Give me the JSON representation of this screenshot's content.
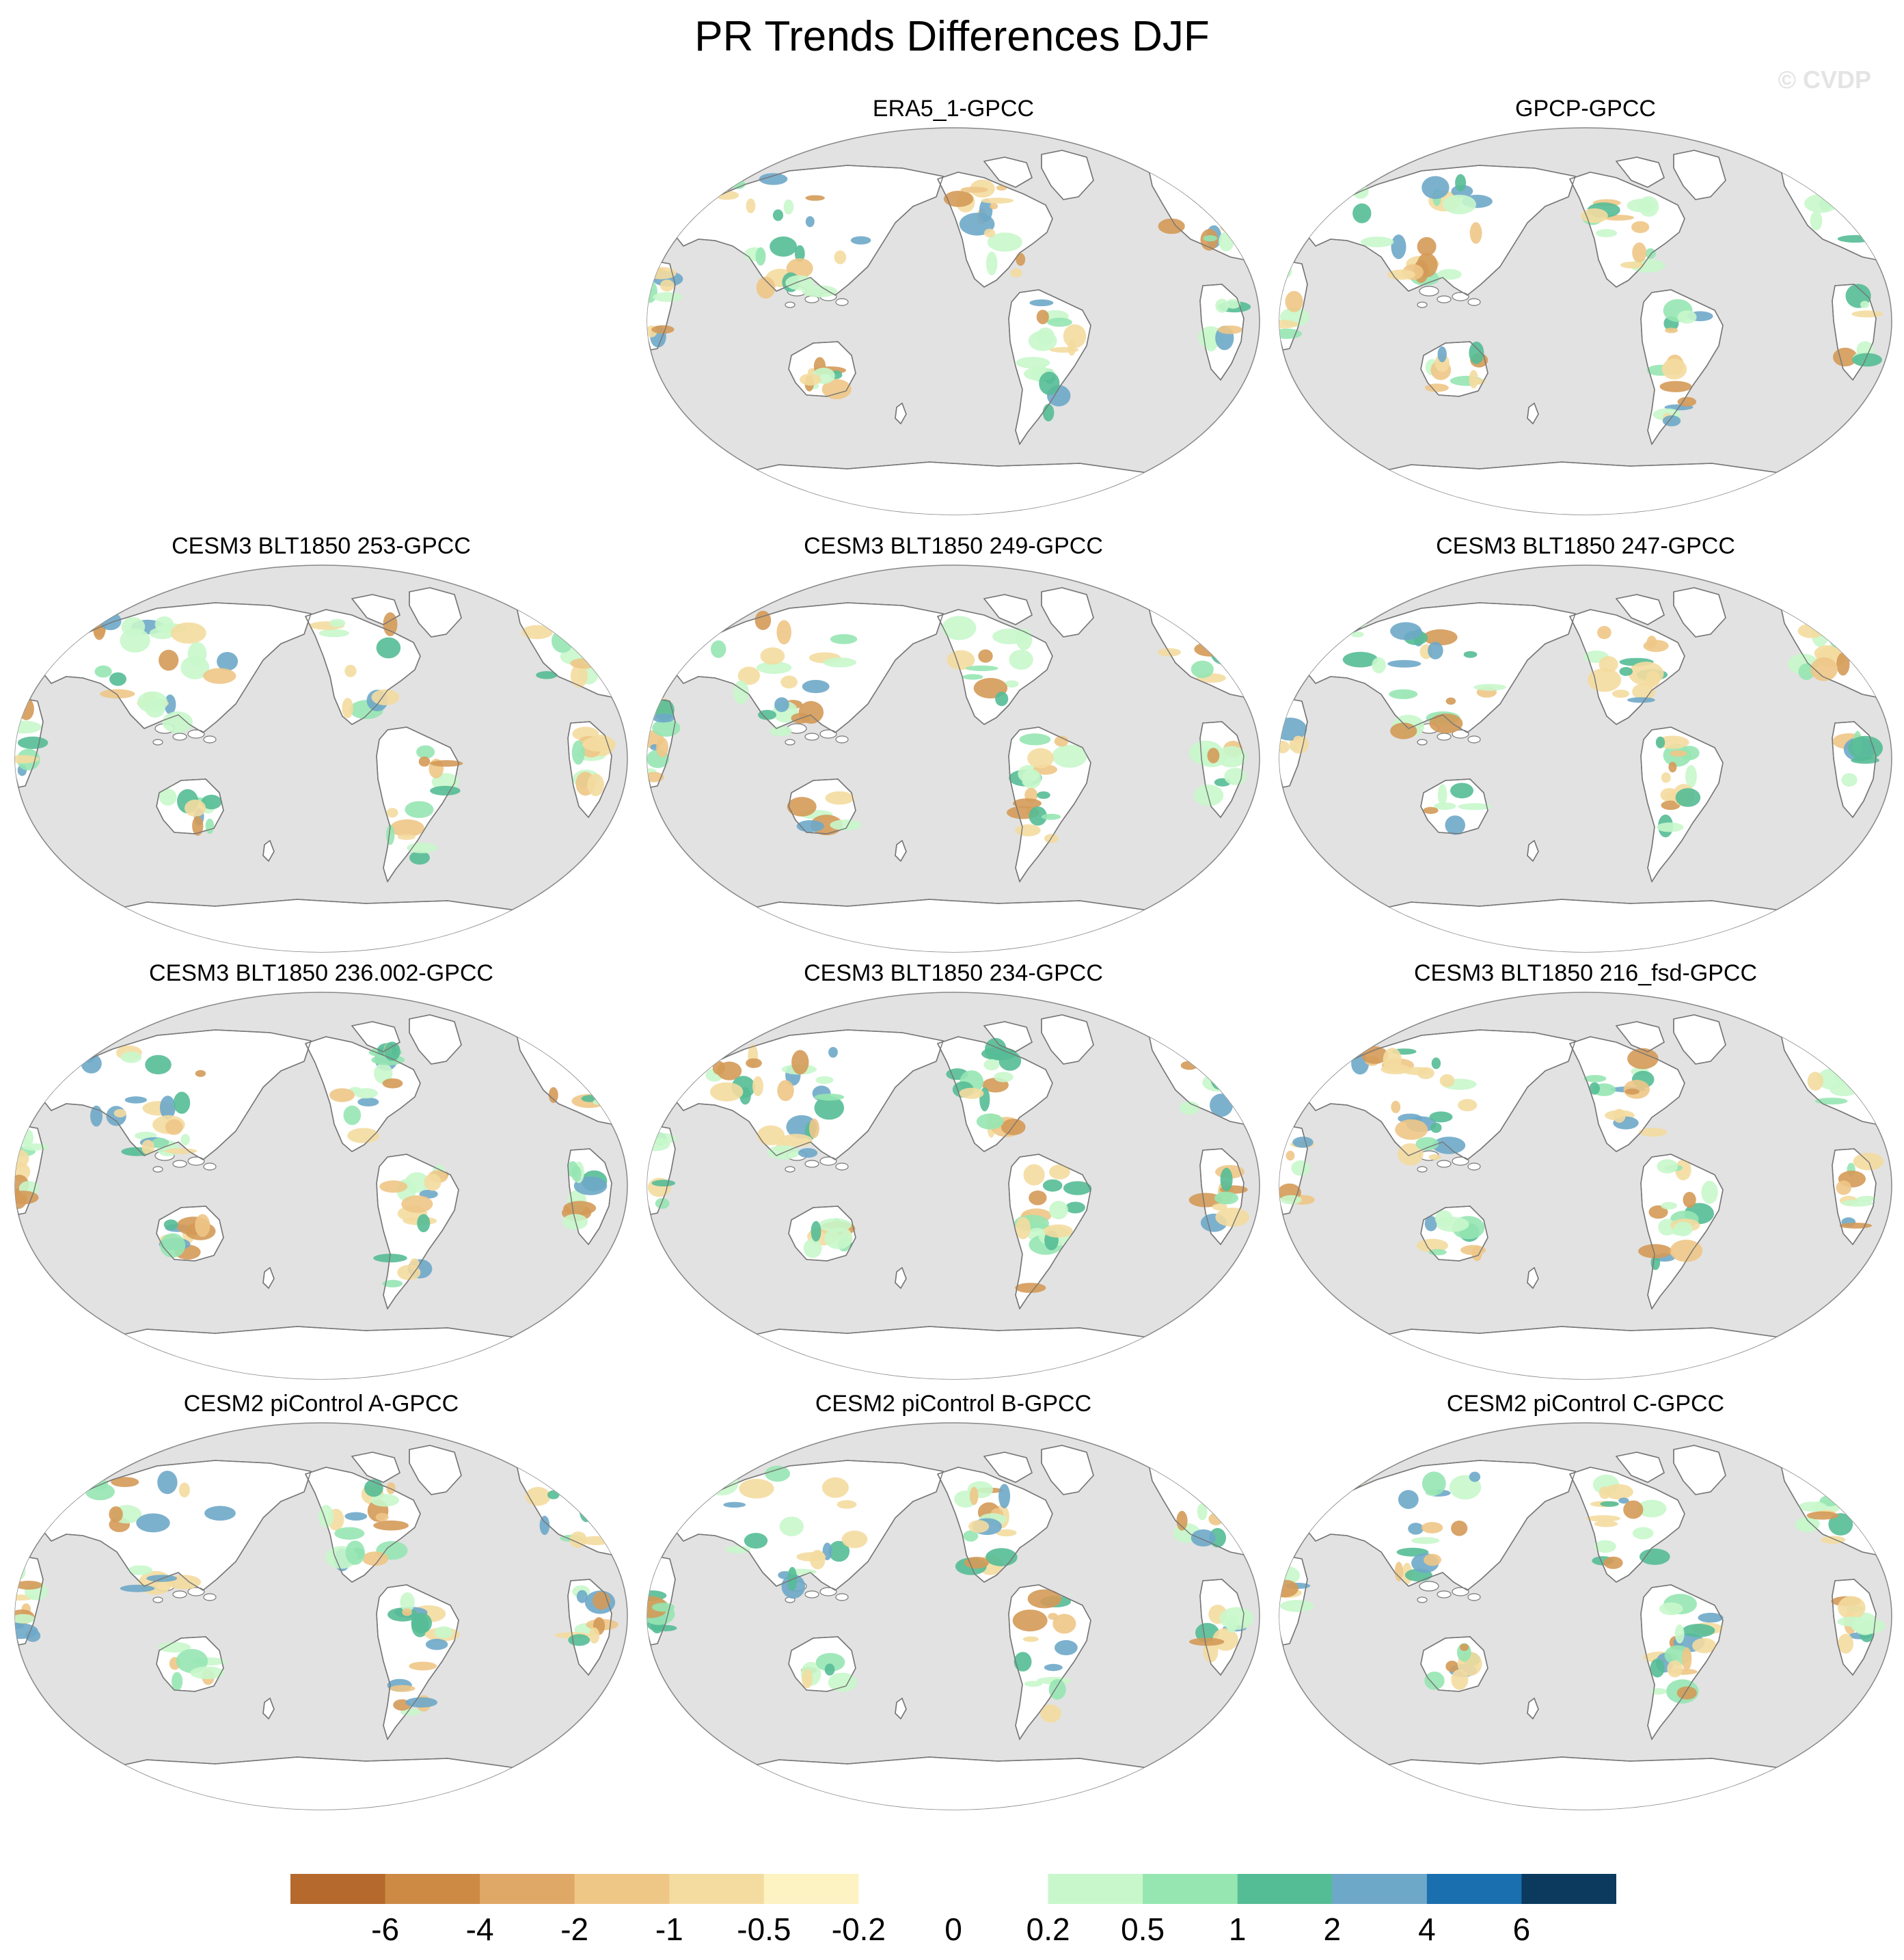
{
  "figure": {
    "title": "PR Trends Differences DJF",
    "watermark": "© CVDP"
  },
  "panels": [
    {
      "title": "ERA5_1-GPCC",
      "variant": 1
    },
    {
      "title": "GPCP-GPCC",
      "variant": 2
    },
    {
      "title": "CESM3 BLT1850 253-GPCC",
      "variant": 3
    },
    {
      "title": "CESM3 BLT1850 249-GPCC",
      "variant": 4
    },
    {
      "title": "CESM3 BLT1850 247-GPCC",
      "variant": 5
    },
    {
      "title": "CESM3 BLT1850 236.002-GPCC",
      "variant": 6
    },
    {
      "title": "CESM3 BLT1850 234-GPCC",
      "variant": 7
    },
    {
      "title": "CESM3 BLT1850 216_fsd-GPCC",
      "variant": 8
    },
    {
      "title": "CESM2 piControl A-GPCC",
      "variant": 9
    },
    {
      "title": "CESM2 piControl B-GPCC",
      "variant": 10
    },
    {
      "title": "CESM2 piControl C-GPCC",
      "variant": 11
    }
  ],
  "colorbar": {
    "labels": [
      "-6",
      "-4",
      "-2",
      "-1",
      "-0.5",
      "-0.2",
      "0",
      "0.2",
      "0.5",
      "1",
      "2",
      "4",
      "6"
    ],
    "colors": [
      "#b5692d",
      "#cd8a45",
      "#e0a866",
      "#eec787",
      "#f4dca0",
      "#fdf2c2",
      "#ffffff",
      "#ffffff",
      "#c8f7cb",
      "#96e6b2",
      "#55bd96",
      "#6ea8c9",
      "#1a6faf",
      "#0b3a5e"
    ]
  },
  "map_colors": {
    "ocean": "#e2e2e2",
    "land": "#ffffff",
    "coast": "#777777",
    "dry_strong": "#d49a58",
    "dry": "#eec787",
    "dry_weak": "#f4dca0",
    "wet_weak": "#c8f7cb",
    "wet": "#96e6b2",
    "wet_strong": "#55bd96",
    "wet_very": "#6ea8c9"
  }
}
